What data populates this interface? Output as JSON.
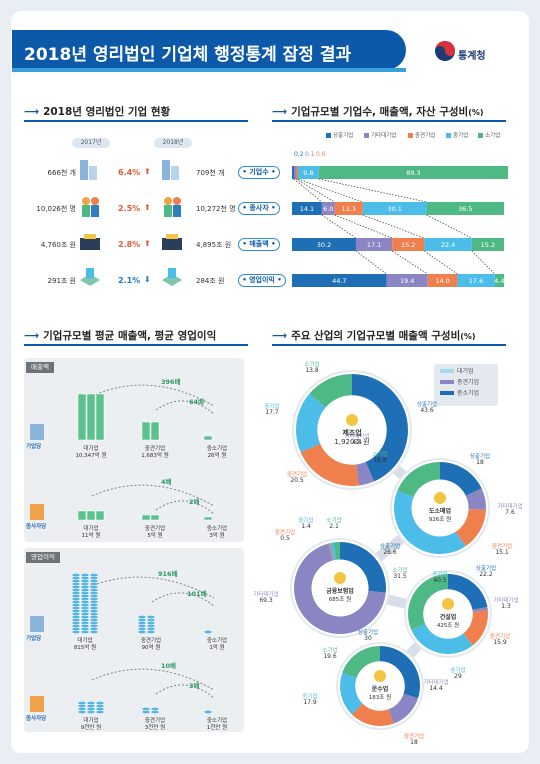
{
  "header": {
    "title": "2018년 영리법인 기업체 행정통계 잠정 결과",
    "agency": "통계청"
  },
  "sec1": {
    "title": "2018년 영리법인 기업 현황",
    "year_prev": "2017년",
    "year_curr": "2018년",
    "rows": [
      {
        "label": "기업수",
        "prev": "666천 개",
        "change": "6.4%",
        "dir": "up",
        "curr": "709천 개"
      },
      {
        "label": "종사자",
        "prev": "10,026천 명",
        "change": "2.5%",
        "dir": "up",
        "curr": "10,272천 명"
      },
      {
        "label": "매출액",
        "prev": "4,760조 원",
        "change": "2.8%",
        "dir": "up",
        "curr": "4,895조 원"
      },
      {
        "label": "영업이익",
        "prev": "291조 원",
        "change": "2.1%",
        "dir": "down",
        "curr": "284조 원"
      }
    ]
  },
  "sec2": {
    "title": "기업규모별 기업수, 매출액, 자산 구성비",
    "unit": "(%)",
    "legend": [
      "상출기업",
      "기타대기업",
      "중견기업",
      "중기업",
      "소기업"
    ],
    "colors": [
      "#1f6fb6",
      "#8a86c4",
      "#f07f4e",
      "#4cbde9",
      "#4fb985"
    ],
    "above_labels": [
      "0.2",
      "0.1",
      "0.6"
    ],
    "bars": [
      {
        "values": [
          0.2,
          0.1,
          0.6,
          9.8,
          89.3
        ],
        "labels": [
          "",
          "",
          "",
          "9.8",
          "89.3"
        ]
      },
      {
        "values": [
          14.1,
          6.0,
          13.3,
          30.1,
          36.5
        ],
        "labels": [
          "14.1",
          "6.0",
          "13.3",
          "30.1",
          "36.5"
        ]
      },
      {
        "values": [
          30.2,
          17.1,
          15.2,
          22.4,
          15.2
        ],
        "labels": [
          "30.2",
          "17.1",
          "15.2",
          "22.4",
          "15.2"
        ]
      },
      {
        "values": [
          44.7,
          19.4,
          14.0,
          17.6,
          4.4
        ],
        "labels": [
          "44.7",
          "19.4",
          "14.0",
          "17.6",
          "4.4"
        ]
      }
    ]
  },
  "sec3": {
    "title": "기업규모별 평균 매출액, 평균 영업이익",
    "sales_tag": "매출액",
    "profit_tag": "영업이익",
    "per_firm": "기업당",
    "per_worker": "종사자당",
    "sales_firm": {
      "ratios": [
        "396배",
        "64배"
      ],
      "items": [
        {
          "name": "대기업",
          "value": "10,347억 원"
        },
        {
          "name": "중견기업",
          "value": "1,683억 원"
        },
        {
          "name": "중소기업",
          "value": "26억 원"
        }
      ]
    },
    "sales_worker": {
      "ratios": [
        "4배",
        "2배"
      ],
      "items": [
        {
          "name": "대기업",
          "value": "11억 원"
        },
        {
          "name": "중견기업",
          "value": "5억 원"
        },
        {
          "name": "중소기업",
          "value": "3억 원"
        }
      ]
    },
    "profit_firm": {
      "ratios": [
        "916배",
        "101배"
      ],
      "items": [
        {
          "name": "대기업",
          "value": "815억 원"
        },
        {
          "name": "중견기업",
          "value": "90억 원"
        },
        {
          "name": "중소기업",
          "value": "1억 원"
        }
      ]
    },
    "profit_worker": {
      "ratios": [
        "10배",
        "3배"
      ],
      "items": [
        {
          "name": "대기업",
          "value": "9천만 원"
        },
        {
          "name": "중견기업",
          "value": "3천만 원"
        },
        {
          "name": "중소기업",
          "value": "1천만 원"
        }
      ]
    }
  },
  "sec4": {
    "title": "주요 산업의 기업규모별 매출액 구성비",
    "unit": "(%)",
    "legend": [
      "대기업",
      "중견기업",
      "중소기업"
    ]
  },
  "chart_data": [
    {
      "type": "pie",
      "title": "제조업",
      "subtitle": "1,920조 원",
      "categories": [
        "상출기업",
        "기타대기업",
        "중견기업",
        "중기업",
        "소기업"
      ],
      "values": [
        43.6,
        4.4,
        20.5,
        17.7,
        13.8
      ]
    },
    {
      "type": "pie",
      "title": "도소매업",
      "subtitle": "926조 원",
      "categories": [
        "상출기업",
        "기타대기업",
        "중견기업",
        "중기업",
        "소기업"
      ],
      "values": [
        18.0,
        7.6,
        15.1,
        40.5,
        18.8
      ]
    },
    {
      "type": "pie",
      "title": "금융보험업",
      "subtitle": "685조 원",
      "categories": [
        "상출기업",
        "기타대기업",
        "중견기업",
        "중기업",
        "소기업"
      ],
      "values": [
        26.6,
        69.3,
        0.5,
        1.4,
        2.1
      ]
    },
    {
      "type": "pie",
      "title": "건설업",
      "subtitle": "425조 원",
      "categories": [
        "상출기업",
        "기타대기업",
        "중견기업",
        "중기업",
        "소기업"
      ],
      "values": [
        22.2,
        1.3,
        15.9,
        29.0,
        31.5
      ]
    },
    {
      "type": "pie",
      "title": "운수업",
      "subtitle": "183조 원",
      "categories": [
        "상출기업",
        "기타대기업",
        "중견기업",
        "중기업",
        "소기업"
      ],
      "values": [
        30.0,
        14.4,
        18.0,
        17.9,
        19.6
      ]
    }
  ]
}
